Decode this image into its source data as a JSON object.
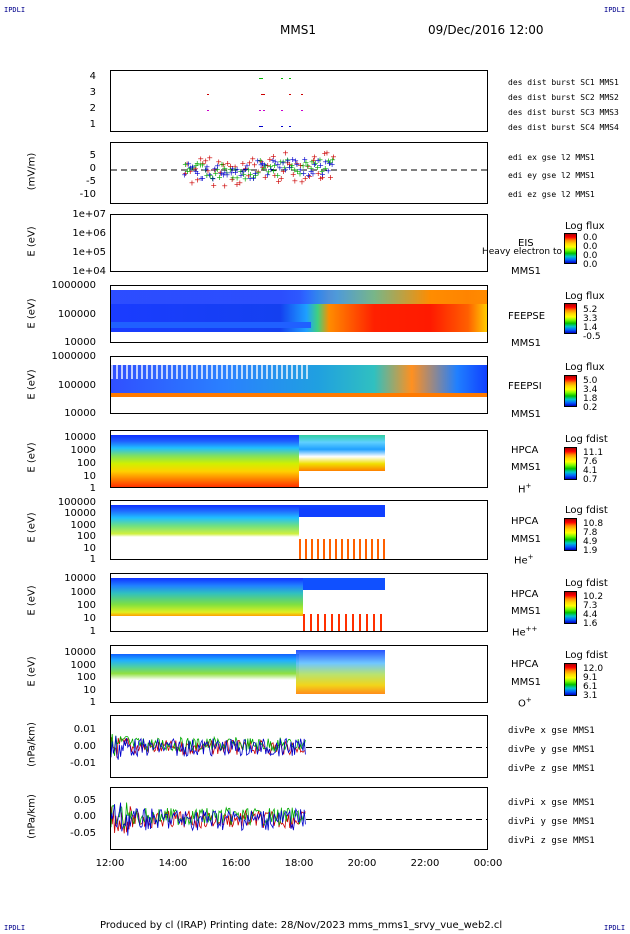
{
  "header": {
    "corner": "IPDLI",
    "title": "MMS1",
    "date": "09/Dec/2016 12:00"
  },
  "footer": {
    "text": "Produced by cl (IRAP)   Printing date: 28/Nov/2023   mms_mms1_srvy_vue_web2.cl"
  },
  "chart_data": {
    "type": "heatmap",
    "x_axis": {
      "ticks": [
        "12:00",
        "14:00",
        "16:00",
        "18:00",
        "20:00",
        "22:00",
        "00:00"
      ]
    },
    "panels": [
      {
        "id": "burst",
        "yticks": [
          "4",
          "3",
          "2",
          "1"
        ],
        "legend": [
          {
            "text": "des dist burst SC1 MMS1",
            "color": "#0000cc"
          },
          {
            "text": "des dist burst SC2 MMS2",
            "color": "#cc00cc"
          },
          {
            "text": "des dist burst SC3 MMS3",
            "color": "#cc0000"
          },
          {
            "text": "des dist burst SC4 MMS4",
            "color": "#00bb00"
          }
        ]
      },
      {
        "id": "edi",
        "ylabel": "(mV/m)",
        "yticks": [
          "5",
          "0",
          "-5",
          "-10"
        ],
        "legend": [
          {
            "text": "edi ex gse l2 MMS1",
            "color": "#cc0000"
          },
          {
            "text": "edi ey gse l2 MMS1",
            "color": "#00aa00"
          },
          {
            "text": "edi ez gse l2 MMS1",
            "color": "#0000cc"
          }
        ]
      },
      {
        "id": "eis",
        "ylabel": "E (eV)",
        "yticks": [
          "1e+07",
          "1e+06",
          "1e+05",
          "1e+04"
        ],
        "labels": [
          "EIS",
          "Heavy electron to",
          "MMS1"
        ],
        "colorbar": {
          "title": "Log flux",
          "values": [
            "0.0",
            "0.0",
            "0.0",
            "0.0"
          ]
        }
      },
      {
        "id": "feepse",
        "ylabel": "E (eV)",
        "yticks": [
          "1000000",
          "100000",
          "10000"
        ],
        "labels": [
          "FEEPSE",
          "MMS1"
        ],
        "colorbar": {
          "title": "Log flux",
          "values": [
            "5.2",
            "3.3",
            "1.4",
            "-0.5"
          ]
        }
      },
      {
        "id": "feepsi",
        "ylabel": "E (eV)",
        "yticks": [
          "1000000",
          "100000",
          "10000"
        ],
        "labels": [
          "FEEPSI",
          "MMS1"
        ],
        "colorbar": {
          "title": "Log flux",
          "values": [
            "5.0",
            "3.4",
            "1.8",
            "0.2"
          ]
        }
      },
      {
        "id": "hpca_h",
        "ylabel": "E (eV)",
        "yticks": [
          "10000",
          "1000",
          "100",
          "10",
          "1"
        ],
        "labels": [
          "HPCA",
          "MMS1",
          "H",
          "+"
        ],
        "colorbar": {
          "title": "Log fdist",
          "values": [
            "11.1",
            "7.6",
            "4.1",
            "0.7"
          ]
        }
      },
      {
        "id": "hpca_he",
        "ylabel": "E (eV)",
        "yticks": [
          "100000",
          "10000",
          "1000",
          "100",
          "10",
          "1"
        ],
        "labels": [
          "HPCA",
          "MMS1",
          "He",
          "+"
        ],
        "colorbar": {
          "title": "Log fdist",
          "values": [
            "10.8",
            "7.8",
            "4.9",
            "1.9"
          ]
        }
      },
      {
        "id": "hpca_hepp",
        "ylabel": "E (eV)",
        "yticks": [
          "10000",
          "1000",
          "100",
          "10",
          "1"
        ],
        "labels": [
          "HPCA",
          "MMS1",
          "He",
          "++"
        ],
        "colorbar": {
          "title": "Log fdist",
          "values": [
            "10.2",
            "7.3",
            "4.4",
            "1.6"
          ]
        }
      },
      {
        "id": "hpca_o",
        "ylabel": "E (eV)",
        "yticks": [
          "10000",
          "1000",
          "100",
          "10",
          "1"
        ],
        "labels": [
          "HPCA",
          "MMS1",
          "O",
          "+"
        ],
        "colorbar": {
          "title": "Log fdist",
          "values": [
            "12.0",
            "9.1",
            "6.1",
            "3.1"
          ]
        }
      },
      {
        "id": "divpe",
        "ylabel": "(nPa/km)",
        "yticks": [
          "0.01",
          "0.00",
          "-0.01"
        ],
        "legend": [
          {
            "text": "divPe x gse MMS1",
            "color": "#cc0000"
          },
          {
            "text": "divPe y gse MMS1",
            "color": "#00aa00"
          },
          {
            "text": "divPe z gse MMS1",
            "color": "#0000cc"
          }
        ]
      },
      {
        "id": "divpi",
        "ylabel": "(nPa/km)",
        "yticks": [
          "0.05",
          "0.00",
          "-0.05"
        ],
        "legend": [
          {
            "text": "divPi x gse MMS1",
            "color": "#cc0000"
          },
          {
            "text": "divPi y gse MMS1",
            "color": "#00aa00"
          },
          {
            "text": "divPi z gse MMS1",
            "color": "#0000cc"
          }
        ]
      }
    ]
  }
}
